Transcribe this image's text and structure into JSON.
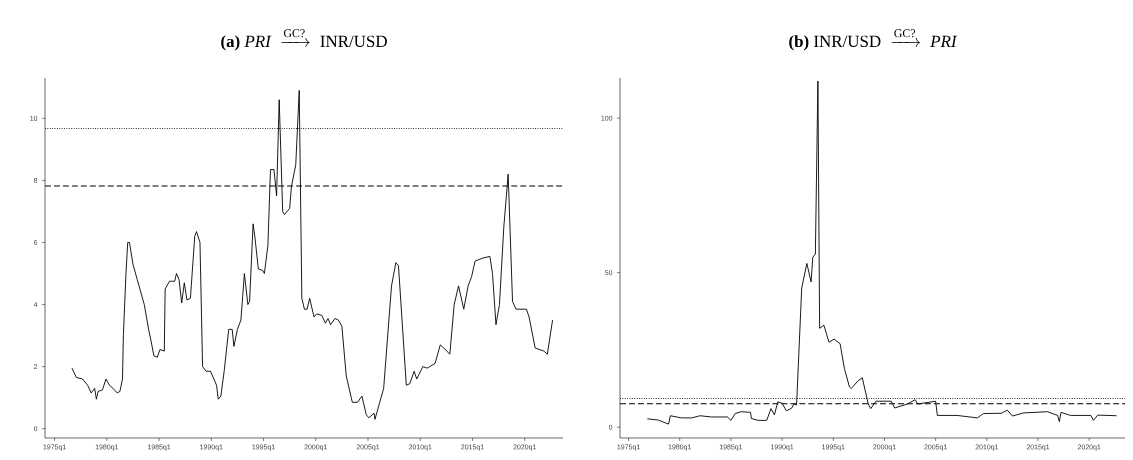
{
  "chart_data": [
    {
      "type": "line",
      "title": "\\textbf{(a)}\\ \\mathit{PRI}\\ \\xrightarrow{\\text{GC?}}\\ \\text{INR/USD}",
      "color": "#000000",
      "x": [
        "1976-09",
        "1977-02",
        "1977-09",
        "1978-03",
        "1978-07",
        "1978-11",
        "1979-01",
        "1979-03",
        "1979-08",
        "1979-12",
        "1980-04",
        "1980-08",
        "1981-01",
        "1981-04",
        "1981-07",
        "1981-08",
        "1981-11",
        "1982-01",
        "1982-03",
        "1982-07",
        "1982-12",
        "1983-08",
        "1984-01",
        "1984-04",
        "1984-07",
        "1984-11",
        "1985-02",
        "1985-07",
        "1985-08",
        "1986-01",
        "1986-07",
        "1986-09",
        "1986-12",
        "1987-03",
        "1987-06",
        "1987-09",
        "1988-01",
        "1988-06",
        "1988-08",
        "1988-12",
        "1989-03",
        "1989-07",
        "1989-12",
        "1990-04",
        "1990-07",
        "1990-09",
        "1990-12",
        "1991-04",
        "1991-09",
        "1992-01",
        "1992-03",
        "1992-07",
        "1992-11",
        "1993-03",
        "1993-07",
        "1993-09",
        "1994-01",
        "1994-03",
        "1994-07",
        "1994-12",
        "1995-02",
        "1995-06",
        "1995-09",
        "1996-01",
        "1996-04",
        "1996-07",
        "1996-11",
        "1997-01",
        "1997-07",
        "1997-09",
        "1998-02",
        "1998-06",
        "1998-09",
        "1998-12",
        "1999-03",
        "1999-06",
        "1999-11",
        "2000-02",
        "2000-08",
        "2000-12",
        "2001-03",
        "2001-06",
        "2001-11",
        "2002-03",
        "2002-07",
        "2002-12",
        "2003-07",
        "2004-01",
        "2004-06",
        "2004-11",
        "2005-02",
        "2005-08",
        "2005-09",
        "2006-02",
        "2006-07",
        "2007-04",
        "2007-09",
        "2007-12",
        "2008-09",
        "2009-01",
        "2009-06",
        "2009-09",
        "2010-04",
        "2010-09",
        "2011-06",
        "2011-12",
        "2012-04",
        "2012-11",
        "2013-04",
        "2013-09",
        "2014-03",
        "2014-08",
        "2014-12",
        "2015-04",
        "2016-01",
        "2016-09",
        "2016-12",
        "2017-04",
        "2017-08",
        "2018-01",
        "2018-06",
        "2018-11",
        "2019-03",
        "2020-03",
        "2020-06",
        "2021-01",
        "2021-11",
        "2022-03",
        "2022-09"
      ],
      "values": [
        1.95,
        1.65,
        1.6,
        1.4,
        1.15,
        1.3,
        0.95,
        1.2,
        1.25,
        1.6,
        1.4,
        1.3,
        1.15,
        1.2,
        1.6,
        3.0,
        5.0,
        6.0,
        6.0,
        5.3,
        4.8,
        4.0,
        3.2,
        2.8,
        2.35,
        2.3,
        2.55,
        2.5,
        4.5,
        4.75,
        4.75,
        5.0,
        4.8,
        4.05,
        4.7,
        4.15,
        4.2,
        6.2,
        6.35,
        6.0,
        2.0,
        1.85,
        1.85,
        1.6,
        1.4,
        0.95,
        1.05,
        1.9,
        3.2,
        3.2,
        2.65,
        3.2,
        3.5,
        5.0,
        4.0,
        4.1,
        6.6,
        6.2,
        5.15,
        5.1,
        5.0,
        5.9,
        8.35,
        8.35,
        7.5,
        10.6,
        7.0,
        6.9,
        7.1,
        7.8,
        8.5,
        10.9,
        4.2,
        3.85,
        3.85,
        4.2,
        3.6,
        3.7,
        3.65,
        3.4,
        3.55,
        3.35,
        3.55,
        3.5,
        3.3,
        1.7,
        0.85,
        0.85,
        1.05,
        0.45,
        0.35,
        0.5,
        0.3,
        0.8,
        1.3,
        4.6,
        5.35,
        5.25,
        1.4,
        1.45,
        1.85,
        1.6,
        2.0,
        1.95,
        2.1,
        2.7,
        2.6,
        2.4,
        4.0,
        4.6,
        3.85,
        4.6,
        4.9,
        5.4,
        5.5,
        5.55,
        5.0,
        3.35,
        4.0,
        6.5,
        8.2,
        4.1,
        3.85,
        3.85,
        3.6,
        2.6,
        2.5,
        2.4,
        3.5
      ],
      "xlim": [
        "1974-02",
        "2023-09"
      ],
      "ylim": [
        -0.3,
        11.3
      ],
      "xticks": [
        {
          "value": "1975-01",
          "label": "1975q1"
        },
        {
          "value": "1980-01",
          "label": "1980q1"
        },
        {
          "value": "1985-01",
          "label": "1985q1"
        },
        {
          "value": "1990-01",
          "label": "1990q1"
        },
        {
          "value": "1995-01",
          "label": "1995q1"
        },
        {
          "value": "2000-01",
          "label": "2000q1"
        },
        {
          "value": "2005-01",
          "label": "2005q1"
        },
        {
          "value": "2010-01",
          "label": "2010q1"
        },
        {
          "value": "2015-01",
          "label": "2015q1"
        },
        {
          "value": "2020-01",
          "label": "2020q1"
        }
      ],
      "yticks": [
        0,
        2,
        4,
        6,
        8,
        10
      ],
      "ref_lines": [
        {
          "axis": "y",
          "value": 9.67,
          "line_style": "dotted",
          "color": "#000000"
        },
        {
          "axis": "y",
          "value": 7.82,
          "line_style": "dashed",
          "color": "#000000"
        }
      ]
    },
    {
      "type": "line",
      "title": "\\textbf{(b)}\\ \\text{INR/USD}\\ \\xrightarrow{\\text{GC?}}\\ \\mathit{PRI}",
      "color": "#000000",
      "x": [
        "1976-11",
        "1977-12",
        "1978-08",
        "1978-12",
        "1979-02",
        "1980-03",
        "1981-03",
        "1982-01",
        "1983-02",
        "1984-09",
        "1985-01",
        "1985-06",
        "1986-01",
        "1986-12",
        "1987-01",
        "1987-09",
        "1988-07",
        "1988-12",
        "1989-04",
        "1989-08",
        "1990-01",
        "1990-06",
        "1990-12",
        "1991-03",
        "1991-06",
        "1991-12",
        "1992-06",
        "1992-11",
        "1993-01",
        "1993-04",
        "1993-07",
        "1993-09",
        "1994-02",
        "1994-08",
        "1995-02",
        "1995-09",
        "1996-02",
        "1996-08",
        "1996-10",
        "1997-06",
        "1997-11",
        "1998-06",
        "1998-09",
        "1999-03",
        "2000-09",
        "2001-01",
        "2002-04",
        "2003-01",
        "2003-04",
        "2005-01",
        "2005-03",
        "2007-02",
        "2009-02",
        "2009-09",
        "2011-06",
        "2012-01",
        "2012-07",
        "2013-08",
        "2015-12",
        "2016-12",
        "2017-02",
        "2017-04",
        "2018-03",
        "2020-03",
        "2020-06",
        "2020-11",
        "2022-09"
      ],
      "values": [
        2.7,
        2.3,
        1.4,
        1.0,
        3.7,
        3.0,
        3.0,
        3.7,
        3.3,
        3.3,
        2.2,
        4.4,
        5.0,
        4.8,
        2.8,
        2.2,
        2.2,
        6.0,
        4.0,
        8.2,
        7.7,
        5.3,
        6.1,
        7.5,
        7.2,
        45,
        53,
        47,
        55,
        56,
        112,
        32,
        33,
        27.5,
        28.5,
        27,
        19,
        13,
        12.5,
        15,
        16,
        7.5,
        6.0,
        8.4,
        8.4,
        6.2,
        7.5,
        8.9,
        7.5,
        8.4,
        3.8,
        3.8,
        3.0,
        4.4,
        4.5,
        5.5,
        3.6,
        4.6,
        5.0,
        3.8,
        1.8,
        4.8,
        3.8,
        3.8,
        2.2,
        3.9,
        3.7
      ],
      "xlim": [
        "1974-03",
        "2023-07"
      ],
      "ylim": [
        -3.5,
        113
      ],
      "xticks": [
        {
          "value": "1975-01",
          "label": "1975q1"
        },
        {
          "value": "1980-01",
          "label": "1980q1"
        },
        {
          "value": "1985-01",
          "label": "1985q1"
        },
        {
          "value": "1990-01",
          "label": "1990q1"
        },
        {
          "value": "1995-01",
          "label": "1995q1"
        },
        {
          "value": "2000-01",
          "label": "2000q1"
        },
        {
          "value": "2005-01",
          "label": "2005q1"
        },
        {
          "value": "2010-01",
          "label": "2010q1"
        },
        {
          "value": "2015-01",
          "label": "2015q1"
        },
        {
          "value": "2020-01",
          "label": "2020q1"
        }
      ],
      "yticks": [
        0,
        50,
        100
      ],
      "ref_lines": [
        {
          "axis": "y",
          "value": 9.3,
          "line_style": "dotted",
          "color": "#000000"
        },
        {
          "axis": "y",
          "value": 7.6,
          "line_style": "dashed",
          "color": "#000000"
        }
      ]
    }
  ]
}
